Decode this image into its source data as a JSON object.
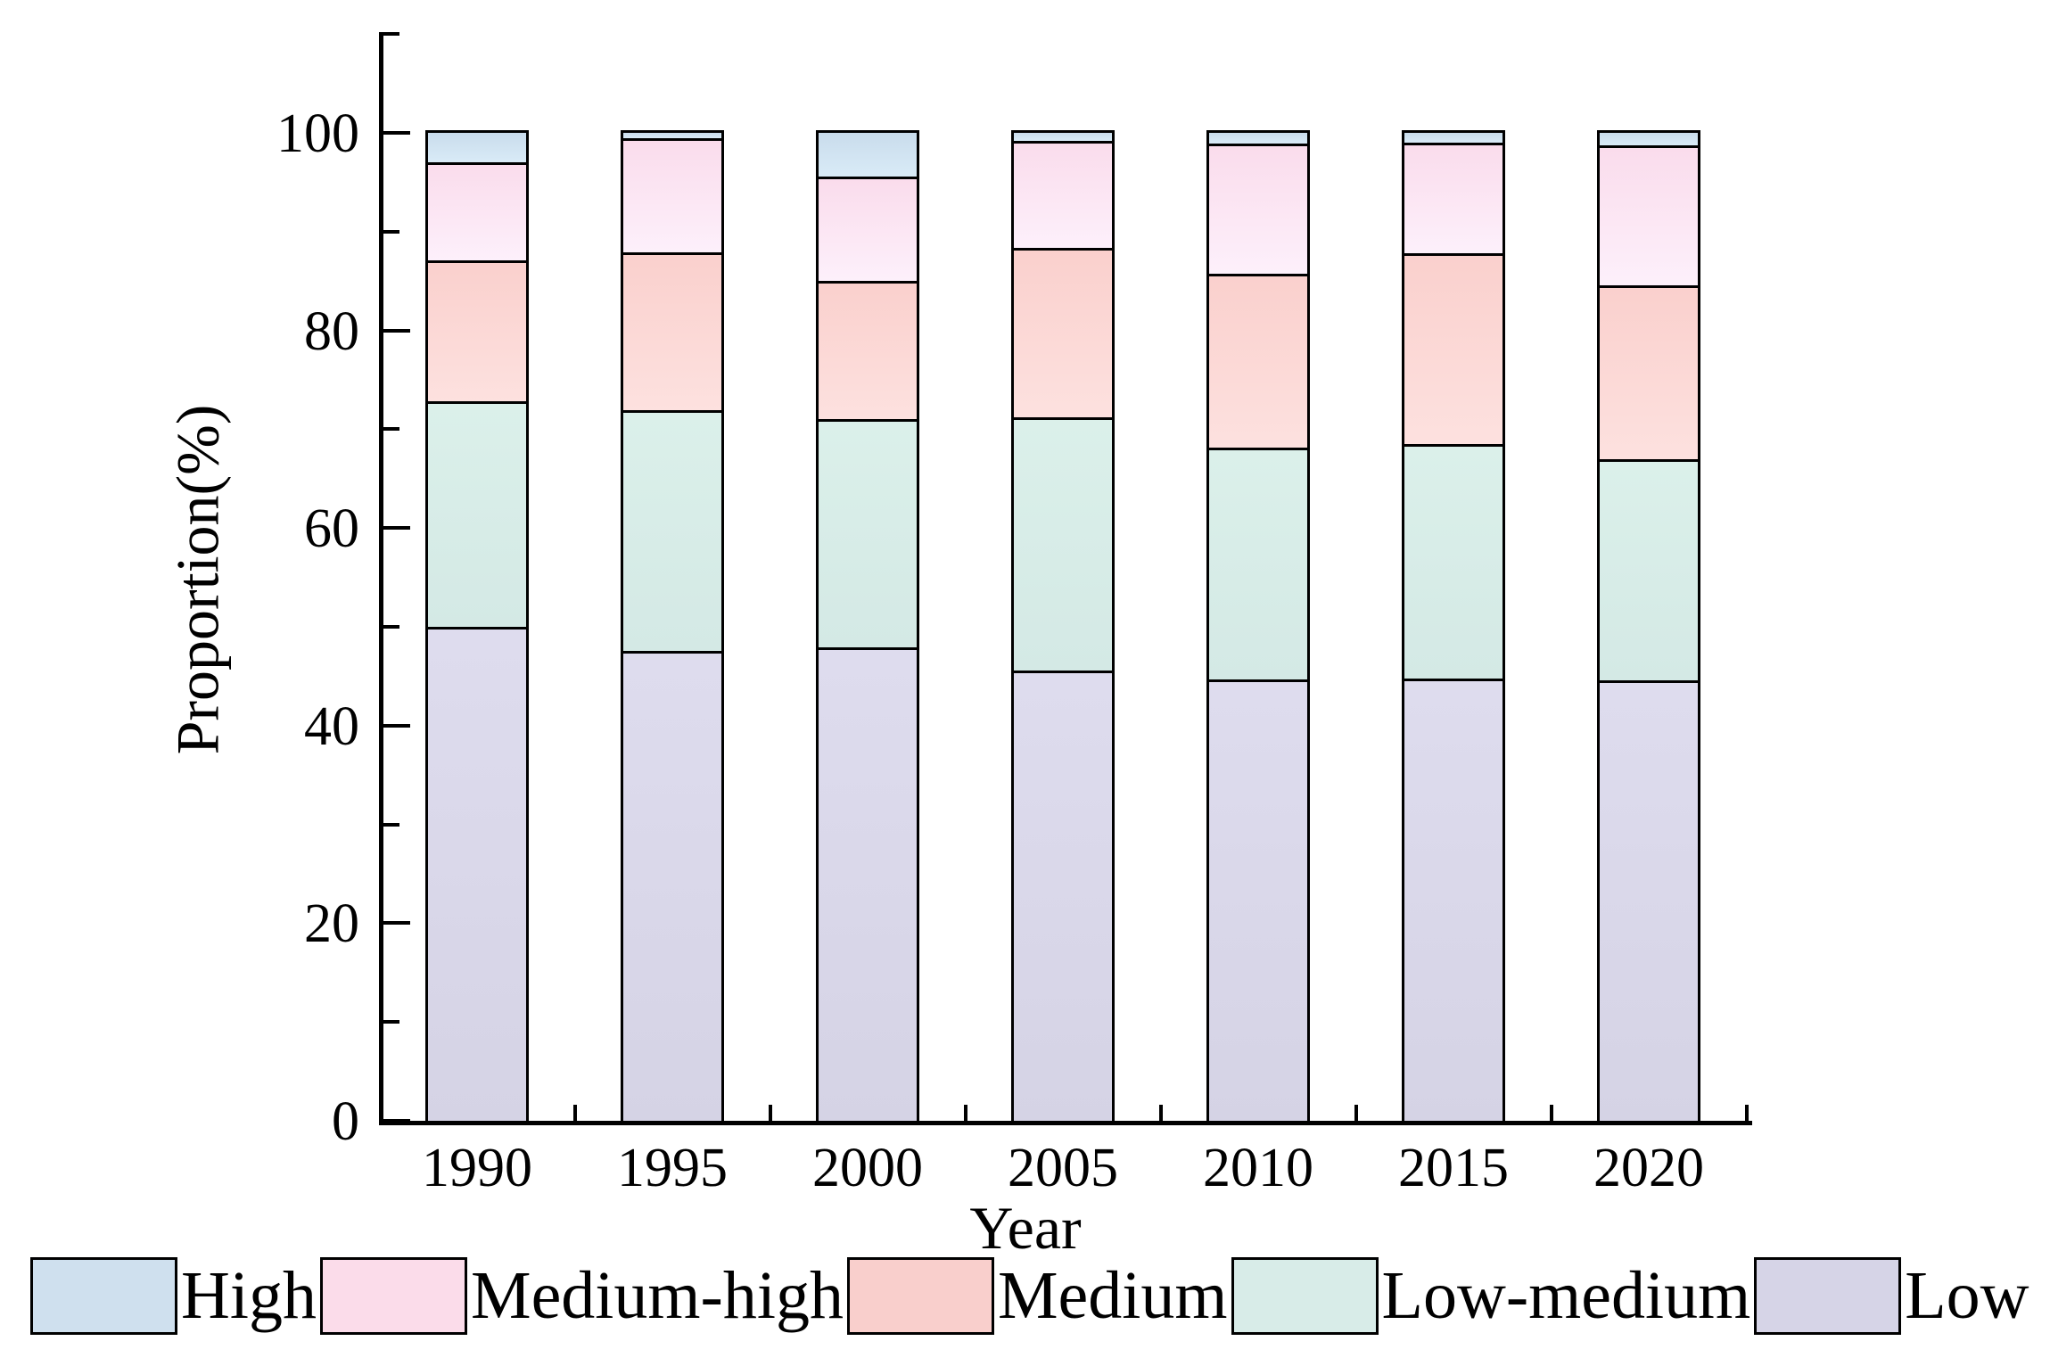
{
  "chart_data": {
    "type": "bar",
    "stacked": true,
    "title": "",
    "xlabel": "Year",
    "ylabel": "Proportion(%)",
    "categories": [
      "1990",
      "1995",
      "2000",
      "2005",
      "2010",
      "2015",
      "2020"
    ],
    "series": [
      {
        "name": "Low",
        "color": "#dedcee",
        "color2": "#d5d3e5",
        "legend_color": "#d6d4e7",
        "values": [
          50.0,
          47.6,
          47.9,
          45.6,
          44.7,
          44.8,
          44.6
        ]
      },
      {
        "name": "Low-medium",
        "color": "#dbf0ea",
        "color2": "#d4e9e5",
        "legend_color": "#d8ece8",
        "values": [
          22.8,
          24.3,
          23.1,
          25.6,
          23.4,
          23.7,
          22.4
        ]
      },
      {
        "name": "Medium",
        "color": "#fad0cd",
        "color2": "#fde1df",
        "legend_color": "#f9cfcc",
        "values": [
          14.3,
          16.0,
          14.0,
          17.2,
          17.6,
          19.3,
          17.6
        ]
      },
      {
        "name": "Medium-high",
        "color": "#fadcec",
        "color2": "#fdf0fb",
        "legend_color": "#fbdcea",
        "values": [
          9.9,
          11.6,
          10.6,
          10.8,
          13.2,
          11.2,
          14.1
        ]
      },
      {
        "name": "High",
        "color": "#c9dcec",
        "color2": "#d9ebf7",
        "legend_color": "#cfe0ee",
        "values": [
          3.0,
          0.5,
          4.4,
          0.8,
          1.1,
          1.0,
          1.3
        ]
      }
    ],
    "legend_order": [
      "High",
      "Medium-high",
      "Medium",
      "Low-medium",
      "Low"
    ],
    "legend_position": "bottom",
    "ylim": [
      0,
      110
    ],
    "y_major_ticks": [
      0,
      20,
      40,
      60,
      80,
      100
    ],
    "y_minor_ticks": [
      10,
      30,
      50,
      70,
      90,
      110
    ],
    "grid": false,
    "bar_edge_color": "#000000"
  }
}
